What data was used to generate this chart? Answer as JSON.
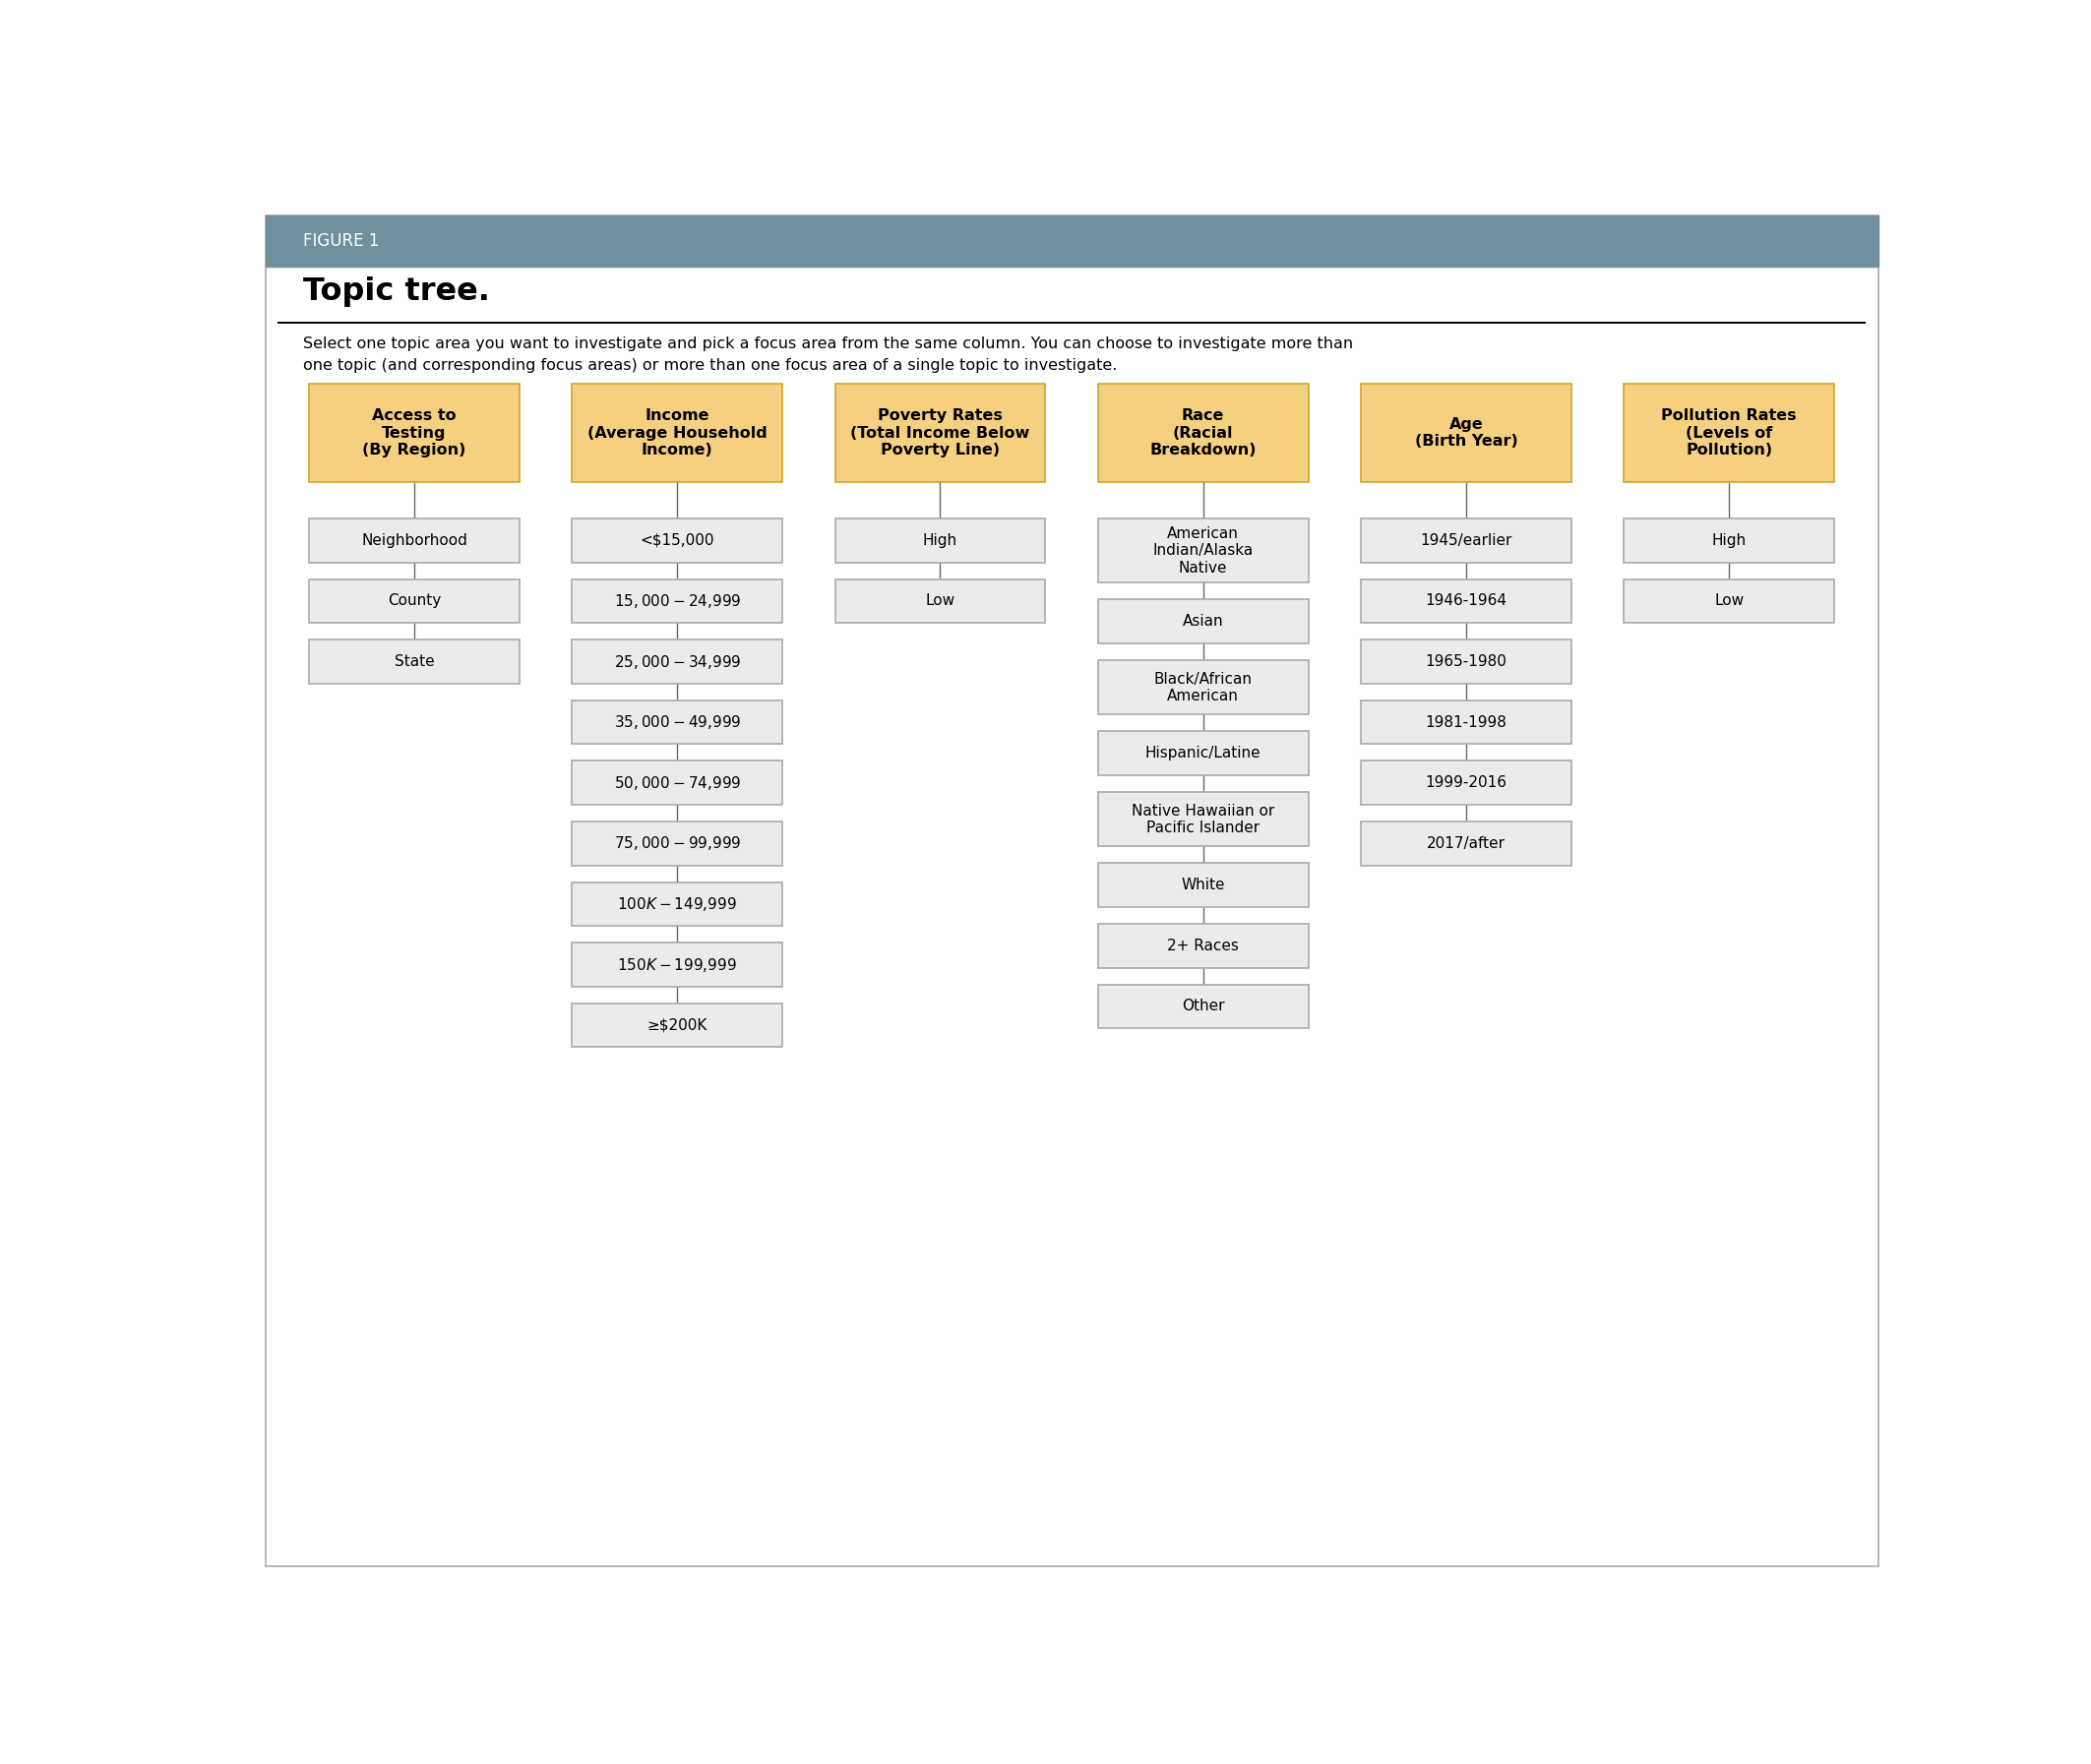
{
  "figure_label": "FIGURE 1",
  "title": "Topic tree.",
  "description": "Select one topic area you want to investigate and pick a focus area from the same column. You can choose to investigate more than\none topic (and corresponding focus areas) or more than one focus area of a single topic to investigate.",
  "header_bg": "#7090a0",
  "header_text_color": "#ffffff",
  "title_color": "#000000",
  "box_yellow_fill": "#f5d080",
  "box_yellow_border": "#c8a830",
  "box_gray_fill": "#ebebeb",
  "box_gray_border": "#aaaaaa",
  "bg_color": "#ffffff",
  "outer_border_color": "#aaaaaa",
  "columns": [
    {
      "header": "Access to\nTesting\n(By Region)",
      "children": [
        "Neighborhood",
        "County",
        "State"
      ]
    },
    {
      "header": "Income\n(Average Household\nIncome)",
      "children": [
        "<$15,000",
        "$15,000-$24,999",
        "$25,000-$34,999",
        "$35,000-$49,999",
        "$50,000-$74,999",
        "$75,000-$99,999",
        "$100K-$149,999",
        "$150K-$199,999",
        "≥$200K"
      ]
    },
    {
      "header": "Poverty Rates\n(Total Income Below\nPoverty Line)",
      "children": [
        "High",
        "Low"
      ]
    },
    {
      "header": "Race\n(Racial\nBreakdown)",
      "children": [
        "American\nIndian/Alaska\nNative",
        "Asian",
        "Black/African\nAmerican",
        "Hispanic/Latine",
        "Native Hawaiian or\nPacific Islander",
        "White",
        "2+ Races",
        "Other"
      ]
    },
    {
      "header": "Age\n(Birth Year)",
      "children": [
        "1945/earlier",
        "1946-1964",
        "1965-1980",
        "1981-1998",
        "1999-2016",
        "2017/after"
      ]
    },
    {
      "header": "Pollution Rates\n(Levels of\nPollution)",
      "children": [
        "High",
        "Low"
      ]
    }
  ]
}
